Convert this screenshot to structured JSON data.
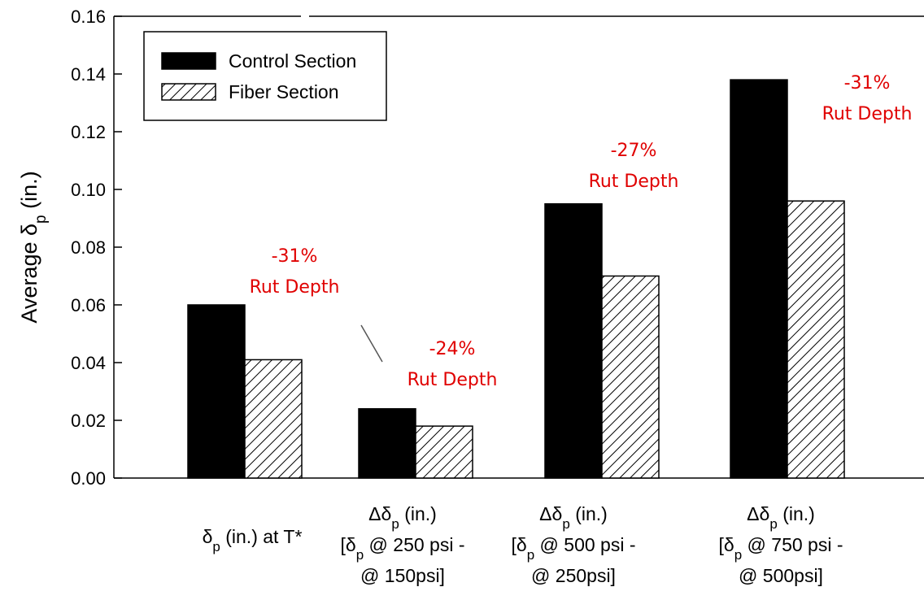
{
  "chart_data": {
    "type": "bar",
    "ylabel": "Average δ_p (in.)",
    "ylim": [
      0,
      0.16
    ],
    "yticks": [
      "0.00",
      "0.02",
      "0.04",
      "0.06",
      "0.08",
      "0.10",
      "0.12",
      "0.14",
      "0.16"
    ],
    "categories": [
      [
        "δ_p (in.) at T*"
      ],
      [
        "Δδ_p (in.)",
        "[δ_p @ 250 psi -",
        "@ 150psi]"
      ],
      [
        "Δδ_p (in.)",
        "[δ_p @ 500 psi -",
        "@ 250psi]"
      ],
      [
        "Δδ_p (in.)",
        "[δ_p @ 750 psi -",
        "@ 500psi]"
      ]
    ],
    "series": [
      {
        "name": "Control Section",
        "values": [
          0.06,
          0.024,
          0.095,
          0.138
        ],
        "fill": "solid",
        "color": "#000000"
      },
      {
        "name": "Fiber Section",
        "values": [
          0.041,
          0.018,
          0.07,
          0.096
        ],
        "fill": "hatched",
        "color": "#000000"
      }
    ],
    "annotations": [
      {
        "category": 0,
        "lines": [
          "-31%",
          "Rut Depth"
        ]
      },
      {
        "category": 1,
        "lines": [
          "-24%",
          "Rut Depth"
        ]
      },
      {
        "category": 2,
        "lines": [
          "-27%",
          "Rut Depth"
        ]
      },
      {
        "category": 3,
        "lines": [
          "-31%",
          "Rut Depth"
        ]
      }
    ],
    "annotation_color": "#e00000",
    "legend": {
      "placement": "top-left"
    },
    "grid": false
  }
}
